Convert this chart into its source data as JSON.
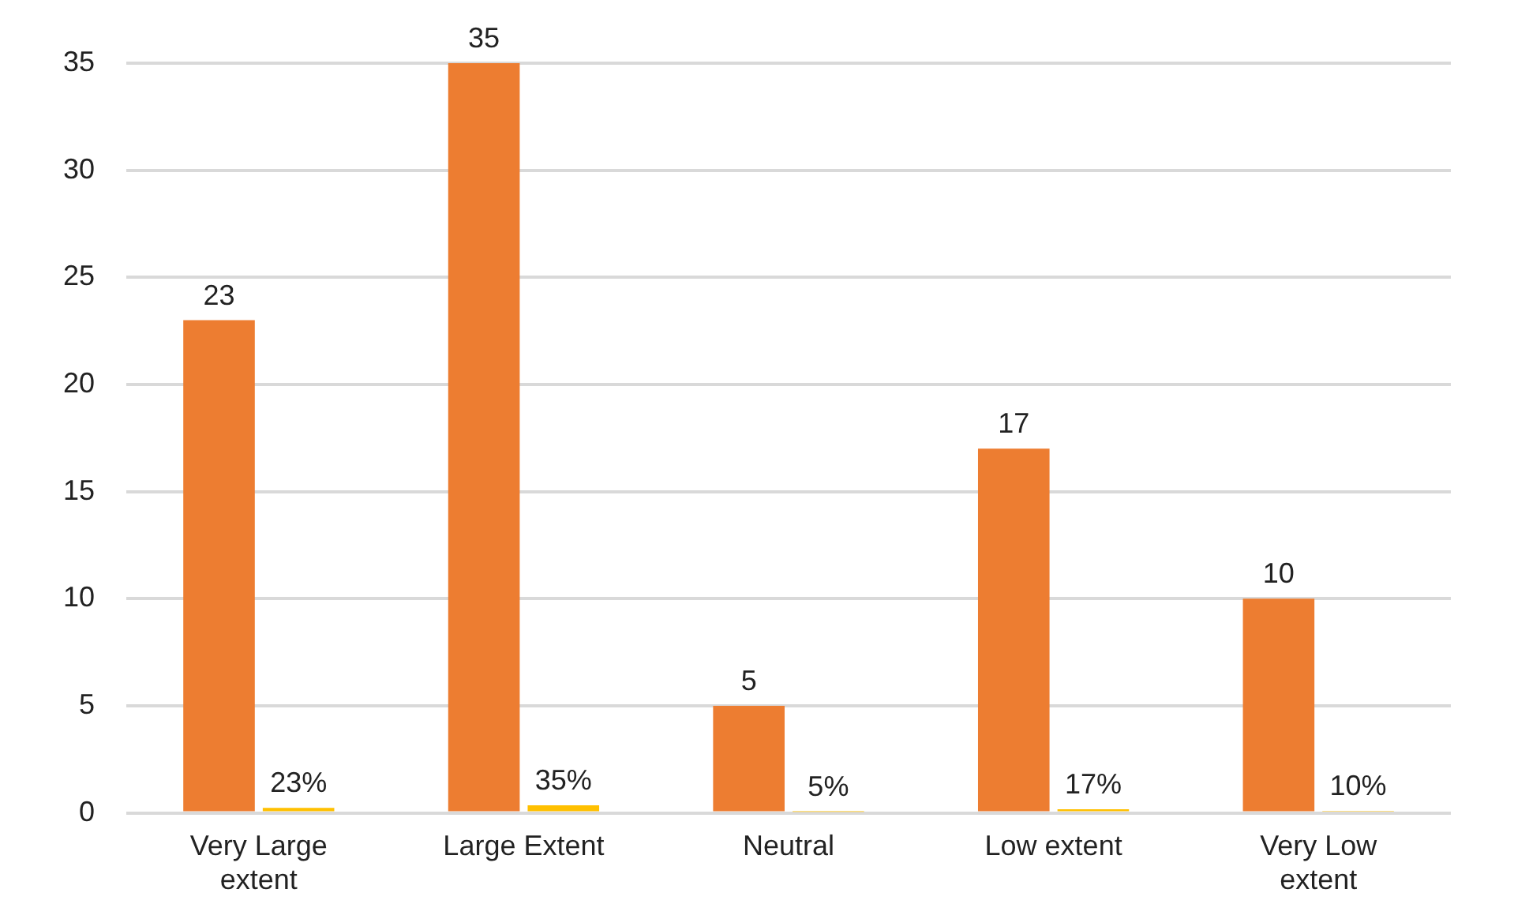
{
  "chart_data": {
    "type": "bar",
    "categories": [
      "Very Large extent",
      "Large Extent",
      "Neutral",
      "Low extent",
      "Very Low extent"
    ],
    "series": [
      {
        "color": "#ed7d31",
        "values": [
          23,
          35,
          5,
          17,
          10
        ]
      },
      {
        "color": "#ffc000",
        "values": [
          0.23,
          0.35,
          0.05,
          0.17,
          0.1
        ],
        "value_labels": [
          "23%",
          "35%",
          "5%",
          "17%",
          "10%"
        ]
      }
    ],
    "ylim": [
      0,
      35
    ],
    "yticks": [
      0,
      5,
      10,
      15,
      20,
      25,
      30,
      35
    ],
    "grid": "y",
    "legend": false,
    "data_labels": true
  }
}
